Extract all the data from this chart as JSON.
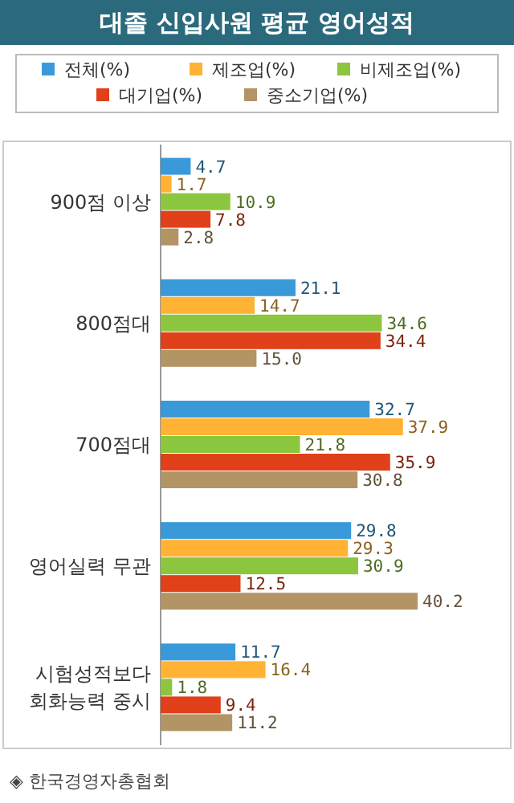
{
  "chart_data": {
    "type": "bar",
    "orientation": "horizontal",
    "title": "대졸 신입사원 평균 영어성적",
    "categories": [
      "900점 이상",
      "800점대",
      "700점대",
      "영어실력 무관",
      "시험성적보다\n회화능력 중시"
    ],
    "series": [
      {
        "name": "전체(%)",
        "color": "#3a9ad9",
        "values": [
          4.7,
          21.1,
          32.7,
          29.8,
          11.7
        ]
      },
      {
        "name": "제조업(%)",
        "color": "#ffb233",
        "values": [
          1.7,
          14.7,
          37.9,
          29.3,
          16.4
        ]
      },
      {
        "name": "비제조업(%)",
        "color": "#8cc63f",
        "values": [
          10.9,
          34.6,
          21.8,
          30.9,
          1.8
        ]
      },
      {
        "name": "대기업(%)",
        "color": "#e0401a",
        "values": [
          7.8,
          34.4,
          35.9,
          12.5,
          9.4
        ]
      },
      {
        "name": "중소기업(%)",
        "color": "#b39465",
        "values": [
          2.8,
          15.0,
          30.8,
          40.2,
          11.2
        ],
        "value_labels": [
          "2.8",
          "15.0",
          "30.8",
          "40.2",
          "11.2"
        ]
      }
    ],
    "data_labels": true,
    "legend": "top",
    "annotations": [
      "◈ 한국경영자총협회"
    ]
  }
}
